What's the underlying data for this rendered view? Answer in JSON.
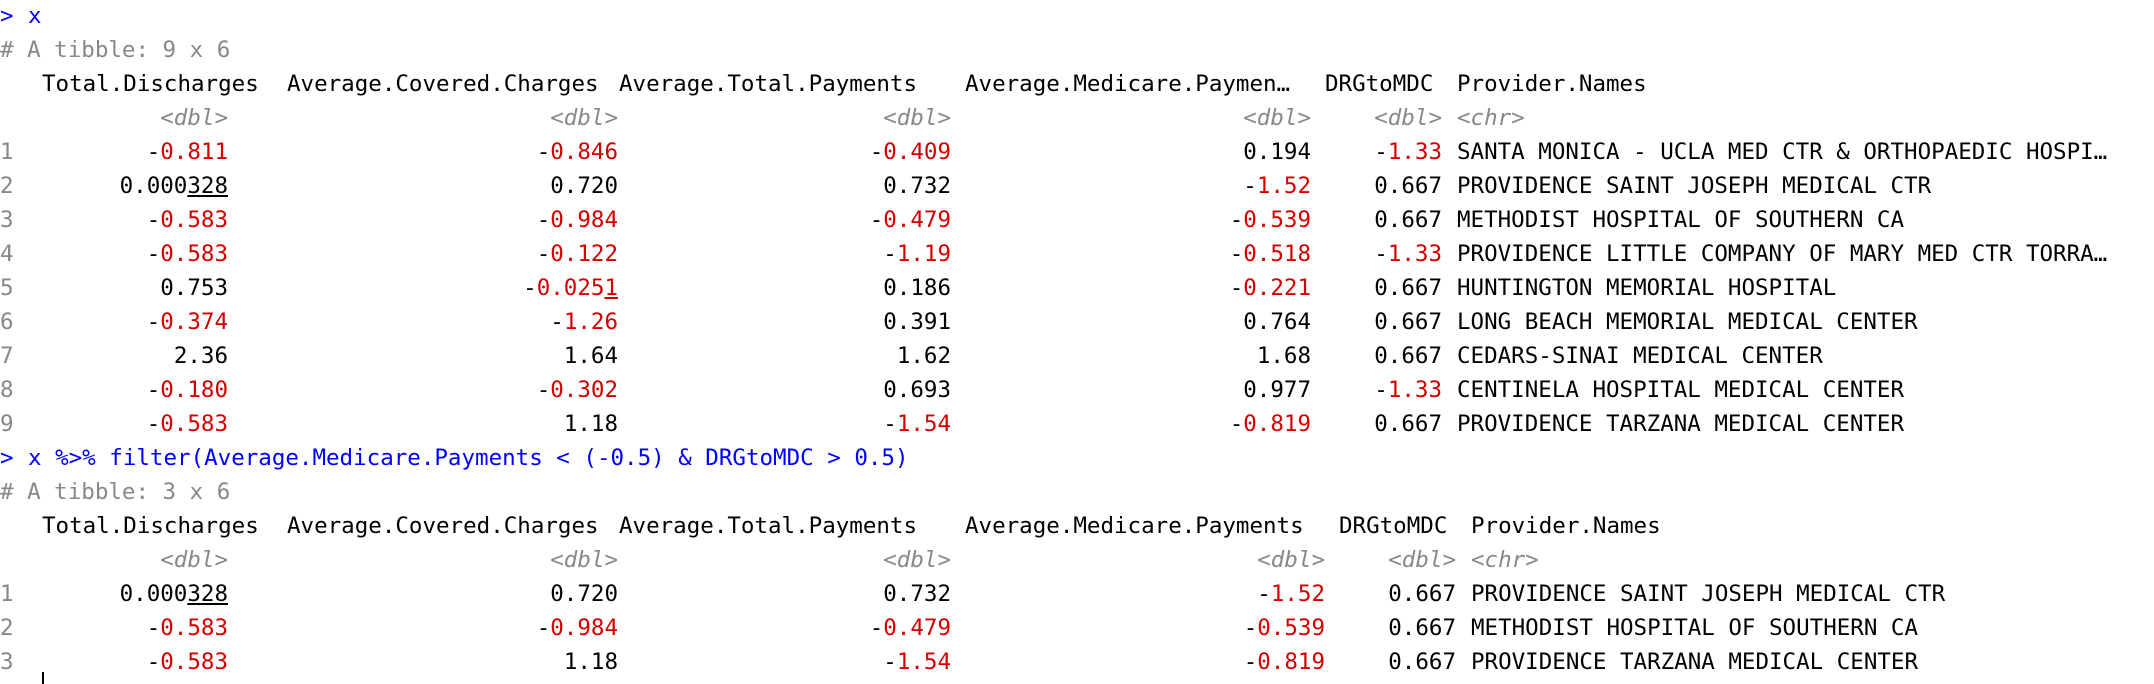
{
  "colors": {
    "command": "#0000ff",
    "muted": "#888888",
    "negative": "#d40000",
    "text": "#000000"
  },
  "cmd1": {
    "prompt": ">",
    "text": "x"
  },
  "block1": {
    "desc": "# A tibble: 9 x 6",
    "headers": [
      "Total.Discharges",
      "Average.Covered.Charges",
      "Average.Total.Payments",
      "Average.Medicare.Paymen…",
      "DRGtoMDC",
      "Provider.Names"
    ],
    "types": [
      "<dbl>",
      "<dbl>",
      "<dbl>",
      "<dbl>",
      "<dbl>",
      "<chr>"
    ],
    "rows": [
      {
        "idx": "1",
        "c1": {
          "sign": "-",
          "val": "0.811"
        },
        "c2": {
          "sign": "-",
          "val": "0.846"
        },
        "c3": {
          "sign": "-",
          "val": "0.409"
        },
        "c4": {
          "sign": "",
          "val": "0.194"
        },
        "c5": {
          "sign": "-",
          "val": "1.33"
        },
        "c6": "SANTA MONICA - UCLA MED CTR & ORTHOPAEDIC HOSPI…"
      },
      {
        "idx": "2",
        "c1": {
          "sign": "",
          "val": "0.000",
          "ul": "328"
        },
        "c2": {
          "sign": "",
          "val": "0.720"
        },
        "c3": {
          "sign": "",
          "val": "0.732"
        },
        "c4": {
          "sign": "-",
          "val": "1.52"
        },
        "c5": {
          "sign": "",
          "val": "0.667"
        },
        "c6": "PROVIDENCE SAINT JOSEPH MEDICAL CTR"
      },
      {
        "idx": "3",
        "c1": {
          "sign": "-",
          "val": "0.583"
        },
        "c2": {
          "sign": "-",
          "val": "0.984"
        },
        "c3": {
          "sign": "-",
          "val": "0.479"
        },
        "c4": {
          "sign": "-",
          "val": "0.539"
        },
        "c5": {
          "sign": "",
          "val": "0.667"
        },
        "c6": "METHODIST HOSPITAL OF SOUTHERN CA"
      },
      {
        "idx": "4",
        "c1": {
          "sign": "-",
          "val": "0.583"
        },
        "c2": {
          "sign": "-",
          "val": "0.122"
        },
        "c3": {
          "sign": "-",
          "val": "1.19"
        },
        "c4": {
          "sign": "-",
          "val": "0.518"
        },
        "c5": {
          "sign": "-",
          "val": "1.33"
        },
        "c6": "PROVIDENCE LITTLE COMPANY OF MARY MED CTR TORRA…"
      },
      {
        "idx": "5",
        "c1": {
          "sign": "",
          "val": "0.753"
        },
        "c2": {
          "sign": "-",
          "val": "0.025",
          "ul": "1"
        },
        "c3": {
          "sign": "",
          "val": "0.186"
        },
        "c4": {
          "sign": "-",
          "val": "0.221"
        },
        "c5": {
          "sign": "",
          "val": "0.667"
        },
        "c6": "HUNTINGTON MEMORIAL HOSPITAL"
      },
      {
        "idx": "6",
        "c1": {
          "sign": "-",
          "val": "0.374"
        },
        "c2": {
          "sign": "-",
          "val": "1.26"
        },
        "c3": {
          "sign": "",
          "val": "0.391"
        },
        "c4": {
          "sign": "",
          "val": "0.764"
        },
        "c5": {
          "sign": "",
          "val": "0.667"
        },
        "c6": "LONG BEACH MEMORIAL MEDICAL CENTER"
      },
      {
        "idx": "7",
        "c1": {
          "sign": "",
          "val": "2.36"
        },
        "c2": {
          "sign": "",
          "val": "1.64"
        },
        "c3": {
          "sign": "",
          "val": "1.62"
        },
        "c4": {
          "sign": "",
          "val": "1.68"
        },
        "c5": {
          "sign": "",
          "val": "0.667"
        },
        "c6": "CEDARS-SINAI MEDICAL CENTER"
      },
      {
        "idx": "8",
        "c1": {
          "sign": "-",
          "val": "0.180"
        },
        "c2": {
          "sign": "-",
          "val": "0.302"
        },
        "c3": {
          "sign": "",
          "val": "0.693"
        },
        "c4": {
          "sign": "",
          "val": "0.977"
        },
        "c5": {
          "sign": "-",
          "val": "1.33"
        },
        "c6": "CENTINELA HOSPITAL MEDICAL CENTER"
      },
      {
        "idx": "9",
        "c1": {
          "sign": "-",
          "val": "0.583"
        },
        "c2": {
          "sign": "",
          "val": "1.18"
        },
        "c3": {
          "sign": "-",
          "val": "1.54"
        },
        "c4": {
          "sign": "-",
          "val": "0.819"
        },
        "c5": {
          "sign": "",
          "val": "0.667"
        },
        "c6": "PROVIDENCE TARZANA MEDICAL CENTER"
      }
    ]
  },
  "cmd2": {
    "prompt": ">",
    "text": "x %>% filter(Average.Medicare.Payments < (-0.5) & DRGtoMDC > 0.5)"
  },
  "block2": {
    "desc": "# A tibble: 3 x 6",
    "headers": [
      "Total.Discharges",
      "Average.Covered.Charges",
      "Average.Total.Payments",
      "Average.Medicare.Payments",
      "DRGtoMDC",
      "Provider.Names"
    ],
    "types": [
      "<dbl>",
      "<dbl>",
      "<dbl>",
      "<dbl>",
      "<dbl>",
      "<chr>"
    ],
    "rows": [
      {
        "idx": "1",
        "c1": {
          "sign": "",
          "val": "0.000",
          "ul": "328"
        },
        "c2": {
          "sign": "",
          "val": "0.720"
        },
        "c3": {
          "sign": "",
          "val": "0.732"
        },
        "c4": {
          "sign": "-",
          "val": "1.52"
        },
        "c5": {
          "sign": "",
          "val": "0.667"
        },
        "c6": "PROVIDENCE SAINT JOSEPH MEDICAL CTR"
      },
      {
        "idx": "2",
        "c1": {
          "sign": "-",
          "val": "0.583"
        },
        "c2": {
          "sign": "-",
          "val": "0.984"
        },
        "c3": {
          "sign": "-",
          "val": "0.479"
        },
        "c4": {
          "sign": "-",
          "val": "0.539"
        },
        "c5": {
          "sign": "",
          "val": "0.667"
        },
        "c6": "METHODIST HOSPITAL OF SOUTHERN CA"
      },
      {
        "idx": "3",
        "c1": {
          "sign": "-",
          "val": "0.583"
        },
        "c2": {
          "sign": "",
          "val": "1.18"
        },
        "c3": {
          "sign": "-",
          "val": "1.54"
        },
        "c4": {
          "sign": "-",
          "val": "0.819"
        },
        "c5": {
          "sign": "",
          "val": "0.667"
        },
        "c6": "PROVIDENCE TARZANA MEDICAL CENTER"
      }
    ]
  }
}
